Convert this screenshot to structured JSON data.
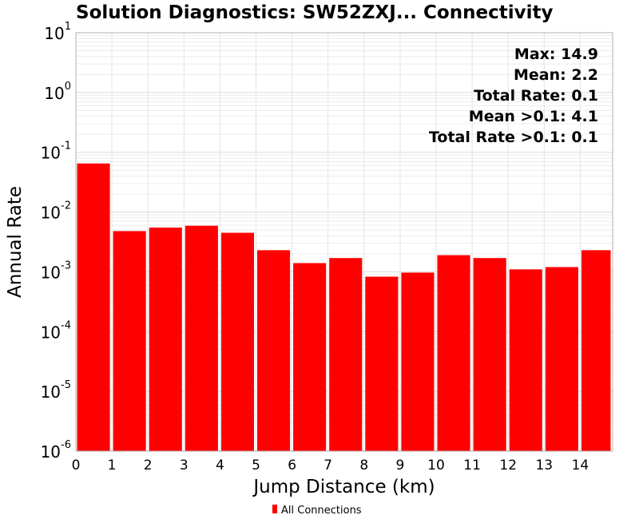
{
  "chart_data": {
    "type": "bar",
    "title": "Solution Diagnostics: SW52ZXJ... Connectivity",
    "xlabel": "Jump Distance (km)",
    "ylabel": "Annual Rate",
    "y_scale": "log",
    "ylim": [
      1e-06,
      10
    ],
    "xlim": [
      0,
      14.9
    ],
    "x_ticks": [
      "0",
      "1",
      "2",
      "3",
      "4",
      "5",
      "6",
      "7",
      "8",
      "9",
      "10",
      "11",
      "12",
      "13",
      "14"
    ],
    "y_ticks": [
      {
        "base": "10",
        "exp": "1"
      },
      {
        "base": "10",
        "exp": "0"
      },
      {
        "base": "10",
        "exp": "-1"
      },
      {
        "base": "10",
        "exp": "-2"
      },
      {
        "base": "10",
        "exp": "-3"
      },
      {
        "base": "10",
        "exp": "-4"
      },
      {
        "base": "10",
        "exp": "-5"
      },
      {
        "base": "10",
        "exp": "-6"
      }
    ],
    "grid": true,
    "bin_width": 1,
    "categories": [
      "0-1",
      "1-2",
      "2-3",
      "3-4",
      "4-5",
      "5-6",
      "6-7",
      "7-8",
      "8-9",
      "9-10",
      "10-11",
      "11-12",
      "12-13",
      "13-14",
      "14-14.9"
    ],
    "series": [
      {
        "name": "All Connections",
        "color": "#ff0000",
        "values": [
          0.065,
          0.0048,
          0.0055,
          0.0059,
          0.0045,
          0.0023,
          0.0014,
          0.0017,
          0.00083,
          0.00097,
          0.0019,
          0.0017,
          0.0011,
          0.0012,
          0.0023
        ]
      }
    ],
    "annotations": [
      "Max: 14.9",
      "Mean: 2.2",
      "Total Rate: 0.1",
      "Mean >0.1: 4.1",
      "Total Rate >0.1: 0.1"
    ],
    "legend": {
      "position": "bottom-center",
      "entries": [
        "All Connections"
      ]
    }
  }
}
